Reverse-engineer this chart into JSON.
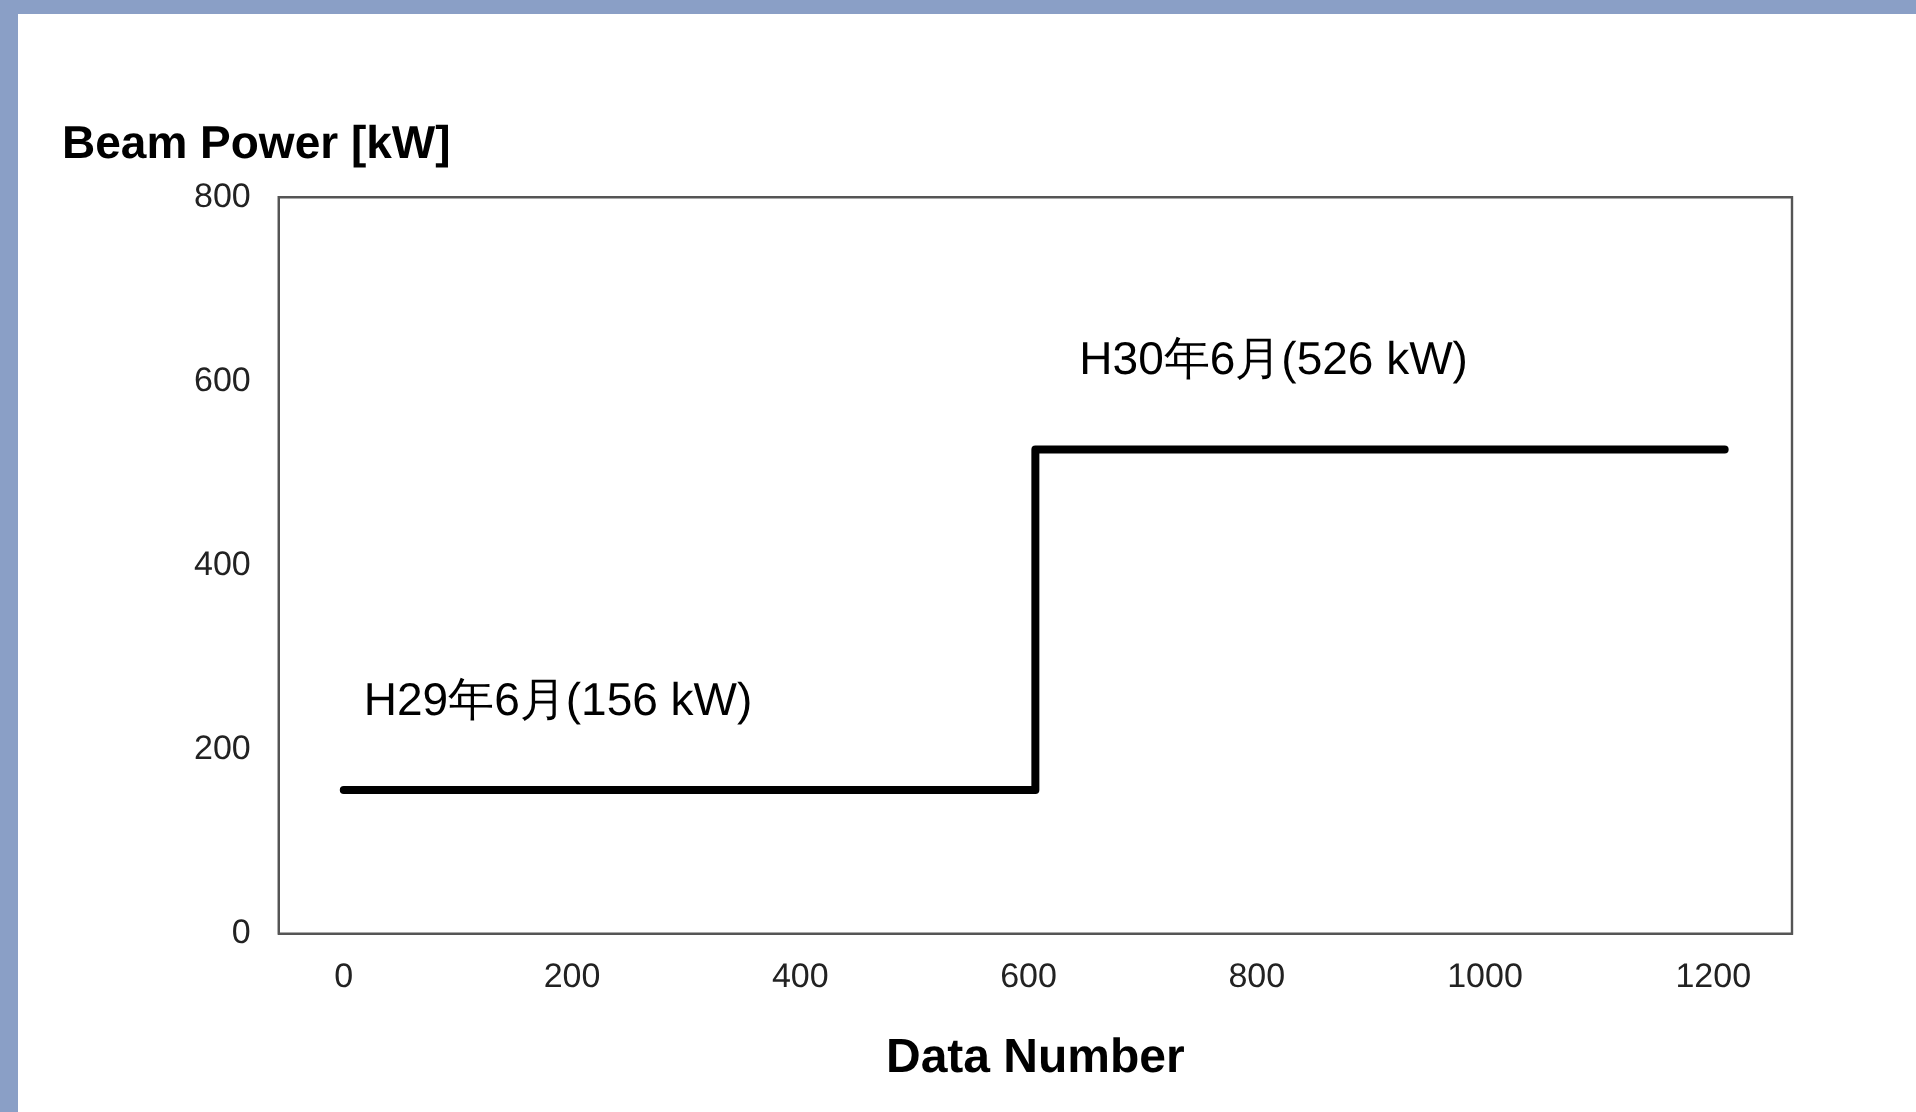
{
  "chart_data": {
    "type": "step",
    "title": "Beam Power [kW]",
    "xlabel": "Data Number",
    "series": [
      {
        "color": "#000000",
        "x": [
          0,
          606,
          1210
        ],
        "values": [
          156,
          526,
          526
        ]
      }
    ],
    "xlim": [
      -57,
      1269
    ],
    "xticks": [
      0,
      200,
      400,
      600,
      800,
      1000,
      1200
    ],
    "ylim": [
      0,
      800
    ],
    "yticks": [
      0,
      200,
      400,
      600,
      800
    ],
    "annotations": [
      "H29年6月(156 kW)",
      "H30年6月(526 kW)"
    ],
    "grid": false,
    "legend": false,
    "marker": "none",
    "line_style": "solid"
  }
}
